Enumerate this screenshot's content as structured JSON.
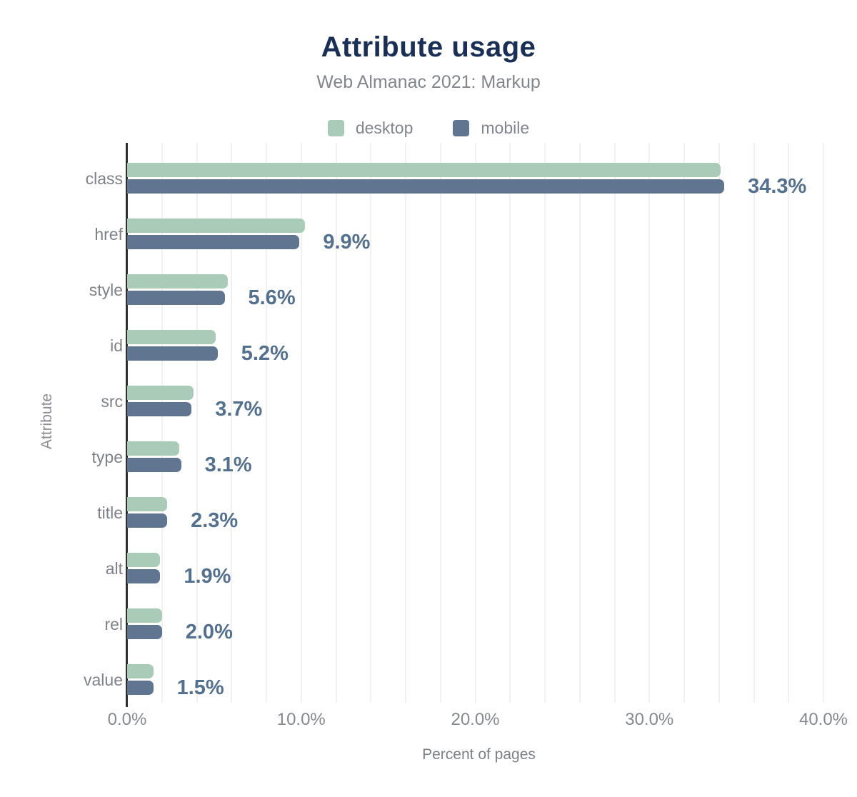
{
  "colors": {
    "title": "#1a2f55",
    "muted_text": "#82868c",
    "value_label": "#54708f",
    "gridline": "#f1f1f1",
    "axis_line": "#2f2f2f",
    "desktop": "#a9cbb7",
    "mobile": "#5f7590"
  },
  "chart_data": {
    "type": "bar",
    "orientation": "horizontal",
    "title": "Attribute usage",
    "subtitle": "Web Almanac 2021: Markup",
    "xlabel": "Percent of pages",
    "ylabel": "Attribute",
    "categories": [
      "class",
      "href",
      "style",
      "id",
      "src",
      "type",
      "title",
      "alt",
      "rel",
      "value"
    ],
    "series": [
      {
        "name": "desktop",
        "color": "#a9cbb7",
        "values": [
          34.1,
          10.2,
          5.8,
          5.1,
          3.8,
          3.0,
          2.3,
          1.9,
          2.0,
          1.5
        ]
      },
      {
        "name": "mobile",
        "color": "#5f7590",
        "values": [
          34.3,
          9.9,
          5.6,
          5.2,
          3.7,
          3.1,
          2.3,
          1.9,
          2.0,
          1.5
        ]
      }
    ],
    "value_labels": [
      "34.3%",
      "9.9%",
      "5.6%",
      "5.2%",
      "3.7%",
      "3.1%",
      "2.3%",
      "1.9%",
      "2.0%",
      "1.5%"
    ],
    "x_ticks": [
      {
        "value": 0,
        "label": "0.0%"
      },
      {
        "value": 10,
        "label": "10.0%"
      },
      {
        "value": 20,
        "label": "20.0%"
      },
      {
        "value": 30,
        "label": "30.0%"
      },
      {
        "value": 40,
        "label": "40.0%"
      }
    ],
    "xlim": [
      0,
      40
    ],
    "gridline_step_pct": 2,
    "grid": true,
    "legend_position": "top"
  }
}
